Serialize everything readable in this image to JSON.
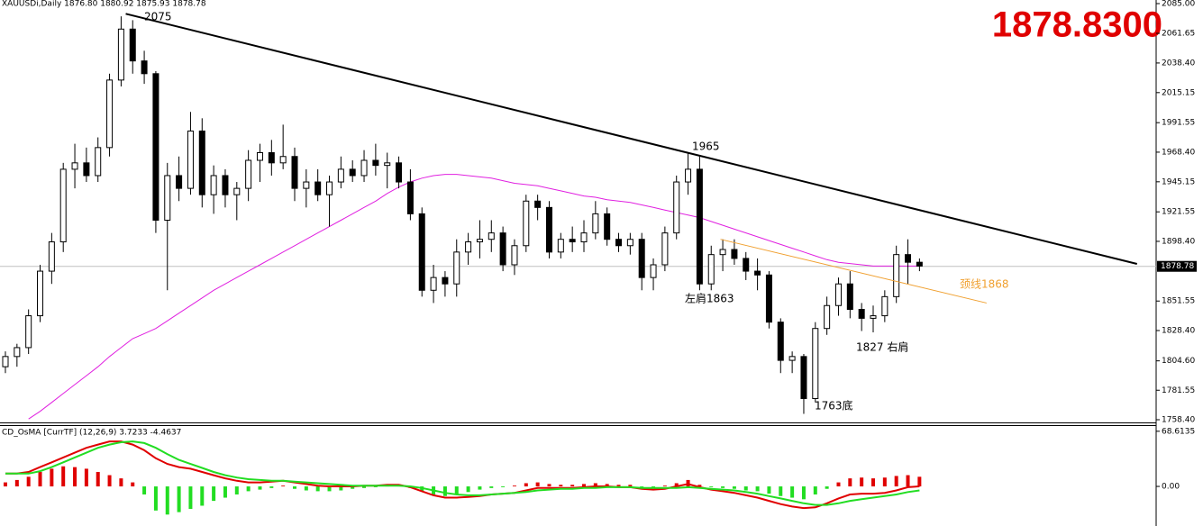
{
  "chart_data": [
    {
      "type": "candlestick",
      "title": "XAUUSDi,Daily 1876.80 1880.92 1875.93 1878.78",
      "price_label": "1878.8300",
      "last_price": {
        "value": 1878.78,
        "label": "1878.78"
      },
      "ylim": [
        1758.4,
        2085
      ],
      "yticks": [
        {
          "value": 2085,
          "label": "2085.00"
        },
        2061.65,
        {
          "value": 2038.4,
          "label": "2038.40"
        },
        2015.15,
        1991.55,
        {
          "value": 1968.4,
          "label": "1968.40"
        },
        1945.15,
        1921.55,
        {
          "value": 1898.4,
          "label": "1898.40"
        },
        1851.55,
        {
          "value": 1828.4,
          "label": "1828.40"
        },
        {
          "value": 1804.6,
          "label": "1804.60"
        },
        1781.55,
        {
          "value": 1758.4,
          "label": "1758.40"
        }
      ],
      "ohlc": [
        [
          1800,
          1812,
          1795,
          1808
        ],
        [
          1808,
          1818,
          1800,
          1815
        ],
        [
          1815,
          1845,
          1810,
          1840
        ],
        [
          1840,
          1880,
          1835,
          1875
        ],
        [
          1875,
          1905,
          1865,
          1898
        ],
        [
          1898,
          1960,
          1890,
          1955
        ],
        [
          1955,
          1975,
          1940,
          1960
        ],
        [
          1960,
          1972,
          1945,
          1950
        ],
        [
          1950,
          1980,
          1945,
          1972
        ],
        [
          1972,
          2030,
          1965,
          2025
        ],
        [
          2025,
          2075,
          2020,
          2065
        ],
        [
          2065,
          2072,
          2030,
          2040
        ],
        [
          2040,
          2048,
          2022,
          2030
        ],
        [
          2030,
          2032,
          1905,
          1915
        ],
        [
          1915,
          1960,
          1860,
          1950
        ],
        [
          1950,
          1965,
          1930,
          1940
        ],
        [
          1940,
          2000,
          1935,
          1985
        ],
        [
          1985,
          1995,
          1925,
          1935
        ],
        [
          1935,
          1958,
          1920,
          1950
        ],
        [
          1950,
          1955,
          1925,
          1935
        ],
        [
          1935,
          1945,
          1915,
          1940
        ],
        [
          1940,
          1970,
          1930,
          1962
        ],
        [
          1962,
          1975,
          1945,
          1968
        ],
        [
          1968,
          1978,
          1950,
          1960
        ],
        [
          1960,
          1990,
          1955,
          1965
        ],
        [
          1965,
          1972,
          1930,
          1940
        ],
        [
          1940,
          1955,
          1925,
          1945
        ],
        [
          1945,
          1955,
          1930,
          1935
        ],
        [
          1935,
          1950,
          1910,
          1945
        ],
        [
          1945,
          1965,
          1940,
          1955
        ],
        [
          1955,
          1962,
          1945,
          1950
        ],
        [
          1950,
          1970,
          1945,
          1962
        ],
        [
          1962,
          1975,
          1950,
          1958
        ],
        [
          1958,
          1968,
          1940,
          1960
        ],
        [
          1960,
          1965,
          1940,
          1945
        ],
        [
          1945,
          1955,
          1915,
          1920
        ],
        [
          1920,
          1925,
          1855,
          1860
        ],
        [
          1860,
          1880,
          1850,
          1870
        ],
        [
          1870,
          1875,
          1855,
          1865
        ],
        [
          1865,
          1900,
          1855,
          1890
        ],
        [
          1890,
          1905,
          1880,
          1898
        ],
        [
          1898,
          1915,
          1885,
          1900
        ],
        [
          1900,
          1915,
          1890,
          1905
        ],
        [
          1905,
          1910,
          1875,
          1880
        ],
        [
          1880,
          1900,
          1872,
          1895
        ],
        [
          1895,
          1935,
          1890,
          1930
        ],
        [
          1930,
          1935,
          1915,
          1925
        ],
        [
          1925,
          1930,
          1885,
          1890
        ],
        [
          1890,
          1905,
          1885,
          1900
        ],
        [
          1900,
          1910,
          1890,
          1898
        ],
        [
          1898,
          1915,
          1890,
          1905
        ],
        [
          1905,
          1930,
          1900,
          1920
        ],
        [
          1920,
          1925,
          1895,
          1900
        ],
        [
          1900,
          1905,
          1890,
          1895
        ],
        [
          1895,
          1905,
          1888,
          1900
        ],
        [
          1900,
          1905,
          1860,
          1870
        ],
        [
          1870,
          1885,
          1860,
          1880
        ],
        [
          1880,
          1910,
          1875,
          1905
        ],
        [
          1905,
          1950,
          1900,
          1945
        ],
        [
          1945,
          1968,
          1935,
          1955
        ],
        [
          1955,
          1965,
          1860,
          1865
        ],
        [
          1865,
          1895,
          1860,
          1888
        ],
        [
          1888,
          1900,
          1875,
          1892
        ],
        [
          1892,
          1900,
          1880,
          1885
        ],
        [
          1885,
          1890,
          1868,
          1875
        ],
        [
          1875,
          1885,
          1860,
          1872
        ],
        [
          1872,
          1875,
          1830,
          1835
        ],
        [
          1835,
          1838,
          1795,
          1805
        ],
        [
          1805,
          1812,
          1795,
          1808
        ],
        [
          1808,
          1810,
          1763,
          1775
        ],
        [
          1775,
          1835,
          1772,
          1830
        ],
        [
          1830,
          1855,
          1825,
          1848
        ],
        [
          1848,
          1870,
          1840,
          1865
        ],
        [
          1865,
          1875,
          1838,
          1845
        ],
        [
          1845,
          1850,
          1828,
          1838
        ],
        [
          1838,
          1848,
          1827,
          1840
        ],
        [
          1840,
          1860,
          1835,
          1855
        ],
        [
          1855,
          1895,
          1850,
          1888
        ],
        [
          1888,
          1900,
          1865,
          1882
        ],
        [
          1882,
          1885,
          1875,
          1879
        ]
      ],
      "ma": {
        "color": "#e020e0",
        "values": [
          null,
          null,
          1759,
          1765,
          1772,
          1779,
          1786,
          1793,
          1800,
          1808,
          1815,
          1822,
          1826,
          1830,
          1836,
          1842,
          1848,
          1854,
          1860,
          1865,
          1870,
          1875,
          1880,
          1885,
          1890,
          1895,
          1900,
          1905,
          1910,
          1915,
          1920,
          1925,
          1930,
          1936,
          1941,
          1945,
          1948,
          1950,
          1951,
          1951,
          1950,
          1949,
          1948,
          1946,
          1944,
          1943,
          1942,
          1940,
          1938,
          1936,
          1934,
          1933,
          1931,
          1930,
          1929,
          1927,
          1925,
          1923,
          1921,
          1919,
          1917,
          1914,
          1911,
          1908,
          1905,
          1902,
          1899,
          1896,
          1893,
          1890,
          1887,
          1884,
          1882,
          1881,
          1880,
          1879,
          1879,
          1879,
          1879,
          1879
        ]
      },
      "lines": [
        {
          "color": "#000000",
          "points": [
            [
              10.4,
              2077
            ],
            [
              97.8,
              1880.7
            ]
          ]
        },
        {
          "color": "#f0a030",
          "points": [
            [
              61.8,
              1900
            ],
            [
              84.8,
              1850
            ]
          ]
        }
      ],
      "annotations": [
        "2075",
        "1965",
        "左肩1863",
        "1827 右肩",
        "1763底",
        "颈线1868"
      ]
    },
    {
      "type": "macd",
      "title": "CD_OsMA [CurrTF] (12,26,9) 3.7233 -4.4637",
      "ylim": [
        -47,
        74
      ],
      "yticks": [
        68.6135,
        {
          "value": 0,
          "label": "0.00"
        }
      ],
      "histogram": [
        5,
        8,
        12,
        18,
        22,
        25,
        24,
        22,
        18,
        14,
        10,
        5,
        -10,
        -30,
        -35,
        -32,
        -28,
        -24,
        -18,
        -14,
        -10,
        -6,
        -4,
        -2,
        1,
        -3,
        -5,
        -6,
        -6,
        -5,
        -3,
        -2,
        -1,
        1,
        1,
        -2,
        -6,
        -10,
        -12,
        -10,
        -7,
        -4,
        -2,
        -1,
        1,
        4,
        5,
        3,
        2,
        2,
        3,
        4,
        3,
        2,
        2,
        -1,
        -2,
        1,
        4,
        8,
        2,
        -1,
        -2,
        -3,
        -5,
        -6,
        -9,
        -12,
        -14,
        -16,
        -10,
        -3,
        5,
        10,
        11,
        10,
        11,
        13,
        14,
        12
      ],
      "series": [
        {
          "color": "#e00000",
          "values": [
            16,
            16,
            18,
            24,
            30,
            36,
            42,
            48,
            52,
            56,
            56,
            52,
            45,
            35,
            28,
            24,
            22,
            18,
            14,
            10,
            7,
            5,
            5,
            6,
            7,
            5,
            3,
            1,
            0,
            0,
            0,
            1,
            1,
            2,
            2,
            -1,
            -6,
            -11,
            -14,
            -14,
            -13,
            -12,
            -10,
            -9,
            -8,
            -5,
            -2,
            -2,
            -2,
            -2,
            -1,
            0,
            0,
            -1,
            -1,
            -3,
            -4,
            -3,
            0,
            3,
            -1,
            -4,
            -6,
            -8,
            -11,
            -14,
            -18,
            -22,
            -25,
            -27,
            -26,
            -21,
            -15,
            -10,
            -9,
            -9,
            -8,
            -5,
            -1,
            0
          ]
        },
        {
          "color": "#22dd22",
          "values": [
            16,
            16,
            16,
            19,
            24,
            30,
            36,
            42,
            48,
            52,
            55,
            56,
            54,
            48,
            40,
            33,
            28,
            23,
            18,
            14,
            11,
            9,
            8,
            7,
            7,
            6,
            5,
            4,
            3,
            2,
            1,
            1,
            1,
            1,
            1,
            0,
            -2,
            -5,
            -8,
            -10,
            -11,
            -11,
            -10,
            -9,
            -8,
            -7,
            -5,
            -4,
            -3,
            -3,
            -2,
            -2,
            -1,
            -1,
            -1,
            -2,
            -2,
            -2,
            -2,
            -1,
            -2,
            -3,
            -4,
            -5,
            -7,
            -9,
            -12,
            -15,
            -18,
            -21,
            -23,
            -23,
            -21,
            -18,
            -16,
            -14,
            -12,
            -10,
            -7,
            -5
          ]
        }
      ]
    }
  ]
}
